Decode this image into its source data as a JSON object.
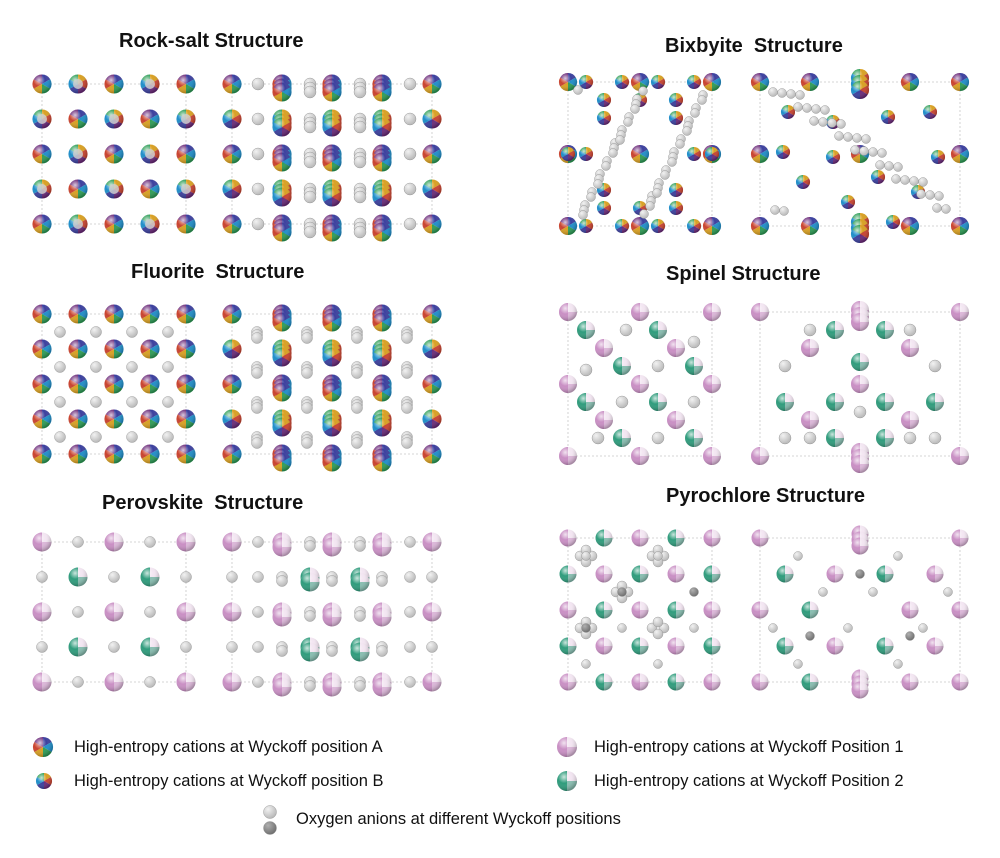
{
  "titles": {
    "rocksalt": "Rock-salt Structure",
    "bixbyite": "Bixbyite  Structure",
    "fluorite": "Fluorite  Structure",
    "spinel": "Spinel Structure",
    "perovskite": "Perovskite  Structure",
    "pyrochlore": "Pyrochlore Structure"
  },
  "legend": {
    "wyckoff_a": "High-entropy cations at Wyckoff position A",
    "wyckoff_b": "High-entropy cations at Wyckoff position B",
    "wyckoff_1": "High-entropy cations at Wyckoff Position 1",
    "wyckoff_2": "High-entropy cations at Wyckoff Position 2",
    "oxygen": "Oxygen anions at different Wyckoff positions"
  },
  "colors": {
    "pie_a": [
      "#3b3f9e",
      "#1f8ec9",
      "#2e9e57",
      "#d9a022",
      "#c9432f",
      "#6b2a7a"
    ],
    "pie_b": [
      "#d9a022",
      "#c9432f",
      "#6b2a7a",
      "#3b3f9e",
      "#1f8ec9",
      "#2e9e57"
    ],
    "pink": "#c98fc4",
    "teal": "#2f9c7c",
    "oxygen_light": "#b5b5b5",
    "oxygen_dark": "#6c6c6c"
  }
}
